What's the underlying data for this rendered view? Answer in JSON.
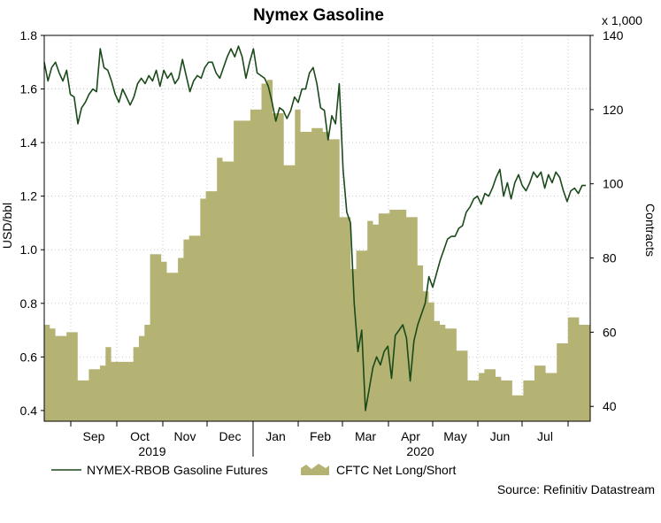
{
  "chart_data": {
    "type": "line",
    "title": "Nymex Gasoline",
    "ylabel_left": "USD/bbl",
    "ylabel_right": "Contracts",
    "right_unit_note": "x 1,000",
    "left_ylim": [
      0.36,
      1.8
    ],
    "left_ticks": [
      "0.4",
      "0.6",
      "0.8",
      "1.0",
      "1.2",
      "1.4",
      "1.6",
      "1.8"
    ],
    "right_ylim": [
      36,
      140
    ],
    "right_ticks": [
      "40",
      "60",
      "80",
      "100",
      "120",
      "140"
    ],
    "months": [
      "Sep",
      "Oct",
      "Nov",
      "Dec",
      "Jan",
      "Feb",
      "Mar",
      "Apr",
      "May",
      "Jun",
      "Jul"
    ],
    "years": [
      "2019",
      "2020"
    ],
    "grid": true,
    "legend_position": "bottom",
    "source": "Source: Refinitiv Datastream",
    "series": [
      {
        "name": "NYMEX-RBOB Gasoline Futures",
        "axis": "left",
        "color": "#1a4a1a",
        "type": "line",
        "values": [
          1.7,
          1.63,
          1.68,
          1.7,
          1.66,
          1.63,
          1.67,
          1.58,
          1.57,
          1.47,
          1.53,
          1.55,
          1.58,
          1.6,
          1.59,
          1.75,
          1.68,
          1.67,
          1.63,
          1.58,
          1.55,
          1.6,
          1.57,
          1.54,
          1.57,
          1.62,
          1.64,
          1.62,
          1.65,
          1.63,
          1.67,
          1.61,
          1.67,
          1.64,
          1.66,
          1.62,
          1.64,
          1.71,
          1.65,
          1.59,
          1.63,
          1.65,
          1.64,
          1.68,
          1.7,
          1.7,
          1.66,
          1.64,
          1.68,
          1.72,
          1.75,
          1.72,
          1.76,
          1.72,
          1.64,
          1.7,
          1.75,
          1.66,
          1.65,
          1.64,
          1.61,
          1.55,
          1.48,
          1.53,
          1.52,
          1.49,
          1.52,
          1.57,
          1.55,
          1.6,
          1.6,
          1.66,
          1.68,
          1.62,
          1.53,
          1.52,
          1.41,
          1.5,
          1.47,
          1.62,
          1.3,
          1.14,
          1.1,
          0.8,
          0.62,
          0.7,
          0.4,
          0.48,
          0.56,
          0.6,
          0.57,
          0.62,
          0.64,
          0.52,
          0.68,
          0.7,
          0.72,
          0.67,
          0.51,
          0.66,
          0.72,
          0.76,
          0.8,
          0.9,
          0.86,
          0.91,
          0.96,
          1.0,
          1.04,
          1.05,
          1.05,
          1.08,
          1.09,
          1.14,
          1.16,
          1.19,
          1.2,
          1.17,
          1.21,
          1.2,
          1.23,
          1.27,
          1.3,
          1.2,
          1.25,
          1.19,
          1.25,
          1.28,
          1.24,
          1.22,
          1.25,
          1.29,
          1.27,
          1.29,
          1.23,
          1.28,
          1.25,
          1.29,
          1.27,
          1.22,
          1.18,
          1.22,
          1.23,
          1.21,
          1.24,
          1.24
        ]
      },
      {
        "name": "CFTC Net Long/Short",
        "axis": "right",
        "color": "#b5b373",
        "type": "area",
        "values": [
          62,
          61,
          59,
          59,
          60,
          60,
          47,
          47,
          50,
          50,
          51,
          56,
          52,
          52,
          52,
          52,
          56,
          59,
          62,
          81,
          81,
          79,
          76,
          76,
          80,
          85,
          86,
          86,
          96,
          98,
          98,
          107,
          106,
          106,
          117,
          117,
          117,
          120,
          120,
          127,
          128,
          119,
          119,
          105,
          105,
          120,
          114,
          114,
          115,
          115,
          114,
          112,
          112,
          91,
          91,
          77,
          82,
          82,
          90,
          89,
          92,
          92,
          93,
          93,
          93,
          91,
          91,
          78,
          71,
          68,
          63,
          62,
          61,
          61,
          55,
          55,
          47,
          47,
          49,
          50,
          50,
          48,
          47,
          47,
          43,
          43,
          47,
          47,
          51,
          51,
          49,
          49,
          57,
          57,
          64,
          64,
          62,
          62
        ]
      }
    ]
  }
}
